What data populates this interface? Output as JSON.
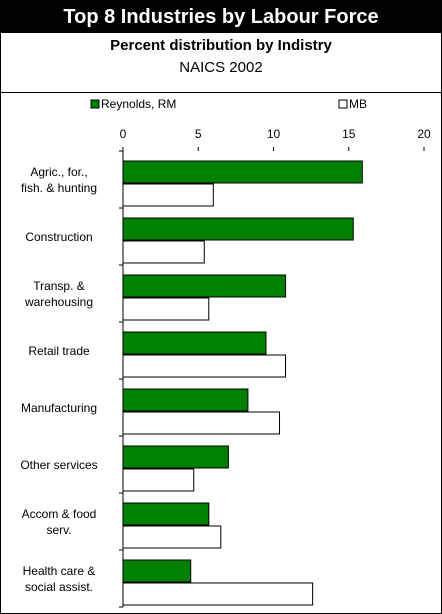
{
  "chart_data": {
    "type": "bar",
    "orientation": "horizontal",
    "title": "Top 8 Industries by Labour Force",
    "subtitle": "Percent distribution by Indistry",
    "note": "NAICS 2002",
    "categories": [
      "Agric., for.,\nfish. & hunting",
      "Construction",
      "Transp. &\nwarehousing",
      "Retail trade",
      "Manufacturing",
      "Other services",
      "Accom & food\nserv.",
      "Health care &\nsocial assist."
    ],
    "series": [
      {
        "name": "Reynolds, RM",
        "color": "#008000",
        "values": [
          15.9,
          15.3,
          10.8,
          9.5,
          8.3,
          7.0,
          5.7,
          4.5
        ]
      },
      {
        "name": "MB",
        "color": "#ffffff",
        "values": [
          6.0,
          5.4,
          5.7,
          10.8,
          10.4,
          4.7,
          6.5,
          12.6
        ]
      }
    ],
    "xlim": [
      0,
      20
    ],
    "xticks": [
      0,
      5,
      10,
      15,
      20
    ],
    "legend": "top"
  }
}
